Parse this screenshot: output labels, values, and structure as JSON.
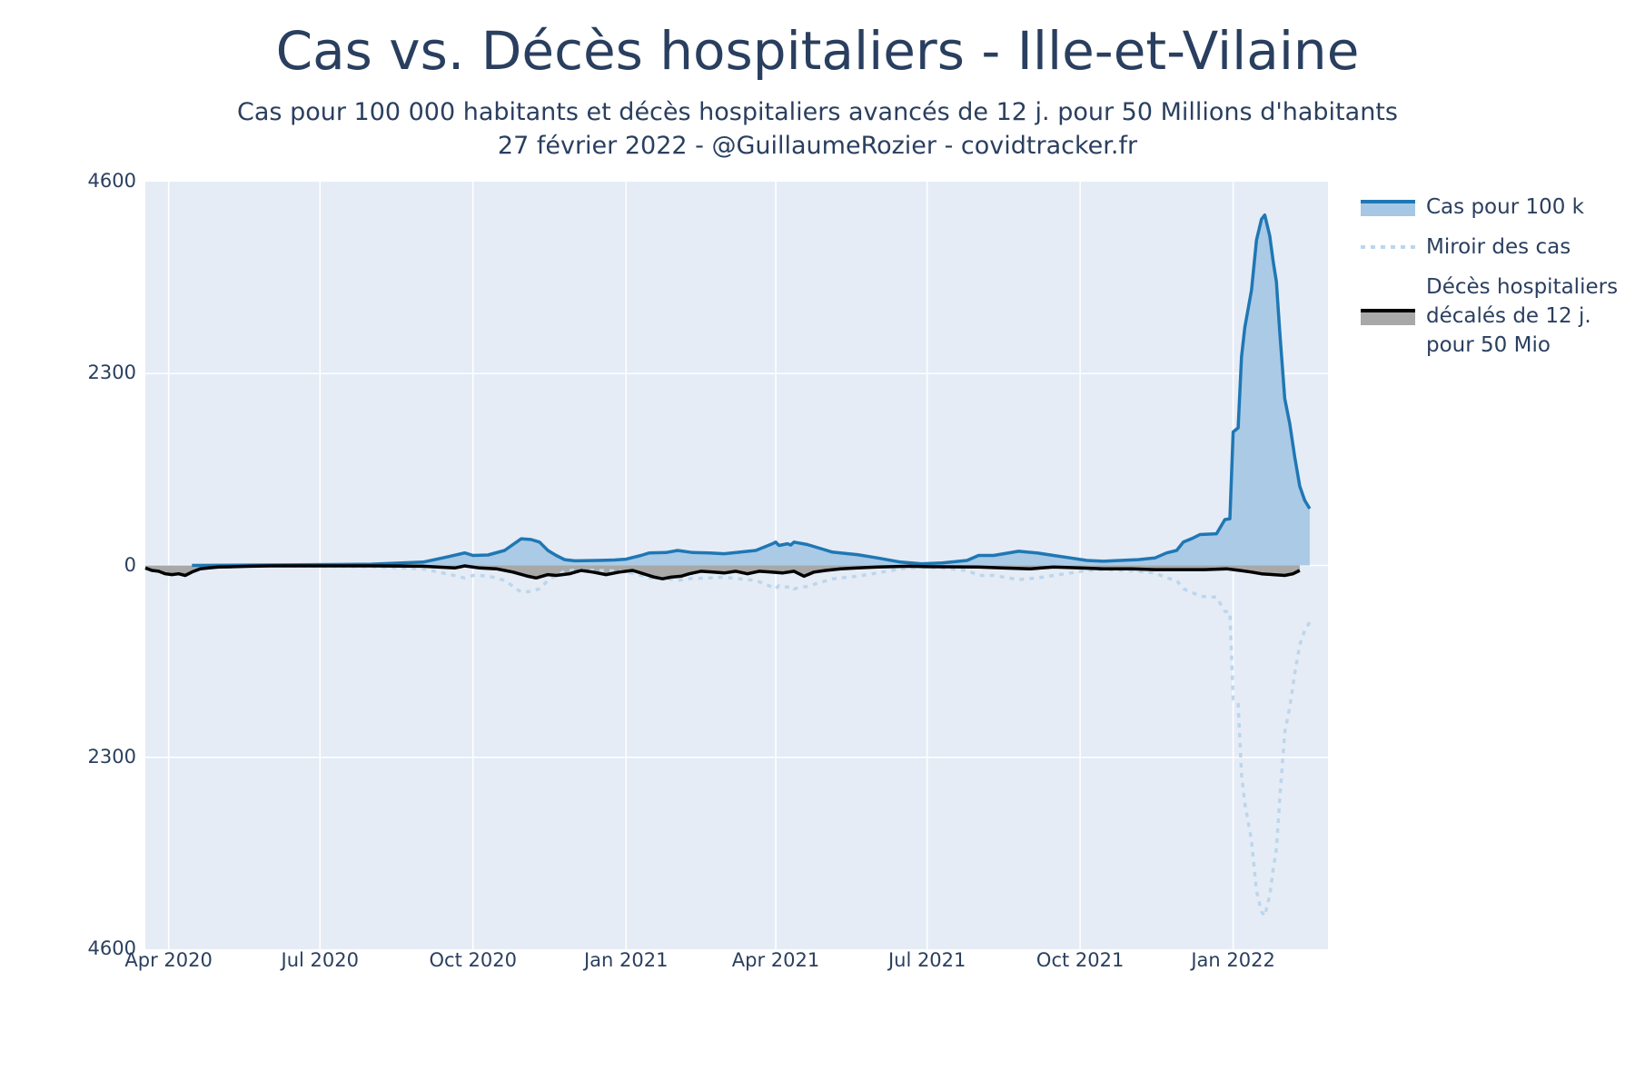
{
  "title": "Cas vs. Décès hospitaliers - Ille-et-Vilaine",
  "subtitle_line1": "Cas pour 100 000 habitants et décès hospitaliers avancés de 12 j. pour 50 Millions d'habitants",
  "subtitle_line2": "27 février 2022 - @GuillaumeRozier - covidtracker.fr",
  "colors": {
    "plot_bg": "#e5ecf6",
    "grid": "#ffffff",
    "cases_line": "#1f77b4",
    "cases_fill": "#a6c8e5",
    "mirror_line": "#bcd6ec",
    "deaths_line": "#000000",
    "deaths_fill": "#a8a8a8",
    "text": "#2a3f5f"
  },
  "legend": {
    "cases": "Cas pour 100 k",
    "mirror": "Miroir des cas",
    "deaths_l1": "Décès hospitaliers",
    "deaths_l2": "décalés de 12 j.",
    "deaths_l3": "pour 50 Mio"
  },
  "chart_data": {
    "type": "area",
    "x_range": [
      "2020-03-18",
      "2022-02-27"
    ],
    "y_range": [
      -4600,
      4600
    ],
    "y_ticks": [
      {
        "value": 4600,
        "label": "4600"
      },
      {
        "value": 2300,
        "label": "2300"
      },
      {
        "value": 0,
        "label": "0"
      },
      {
        "value": -2300,
        "label": "2300"
      },
      {
        "value": -4600,
        "label": "4600"
      }
    ],
    "x_ticks": [
      {
        "date": "2020-04-01",
        "label": "Apr 2020"
      },
      {
        "date": "2020-07-01",
        "label": "Jul 2020"
      },
      {
        "date": "2020-10-01",
        "label": "Oct 2020"
      },
      {
        "date": "2021-01-01",
        "label": "Jan 2021"
      },
      {
        "date": "2021-04-01",
        "label": "Apr 2021"
      },
      {
        "date": "2021-07-01",
        "label": "Jul 2021"
      },
      {
        "date": "2021-10-01",
        "label": "Oct 2021"
      },
      {
        "date": "2022-01-01",
        "label": "Jan 2022"
      }
    ],
    "grid": true,
    "legend_position": "right",
    "series": [
      {
        "name": "Cas pour 100 k",
        "style": "line-fill",
        "points": [
          [
            "2020-04-15",
            0
          ],
          [
            "2020-06-01",
            5
          ],
          [
            "2020-08-01",
            15
          ],
          [
            "2020-09-01",
            40
          ],
          [
            "2020-09-15",
            100
          ],
          [
            "2020-09-26",
            150
          ],
          [
            "2020-10-01",
            120
          ],
          [
            "2020-10-10",
            125
          ],
          [
            "2020-10-20",
            180
          ],
          [
            "2020-10-30",
            320
          ],
          [
            "2020-11-05",
            310
          ],
          [
            "2020-11-10",
            280
          ],
          [
            "2020-11-15",
            180
          ],
          [
            "2020-11-20",
            120
          ],
          [
            "2020-11-25",
            70
          ],
          [
            "2020-12-01",
            55
          ],
          [
            "2020-12-15",
            60
          ],
          [
            "2020-12-25",
            65
          ],
          [
            "2021-01-01",
            75
          ],
          [
            "2021-01-10",
            120
          ],
          [
            "2021-01-15",
            150
          ],
          [
            "2021-01-25",
            155
          ],
          [
            "2021-02-01",
            180
          ],
          [
            "2021-02-10",
            155
          ],
          [
            "2021-02-20",
            150
          ],
          [
            "2021-03-01",
            140
          ],
          [
            "2021-03-20",
            180
          ],
          [
            "2021-03-30",
            260
          ],
          [
            "2021-04-01",
            280
          ],
          [
            "2021-04-03",
            240
          ],
          [
            "2021-04-08",
            260
          ],
          [
            "2021-04-10",
            245
          ],
          [
            "2021-04-12",
            280
          ],
          [
            "2021-04-20",
            250
          ],
          [
            "2021-04-30",
            190
          ],
          [
            "2021-05-05",
            160
          ],
          [
            "2021-05-10",
            150
          ],
          [
            "2021-05-20",
            130
          ],
          [
            "2021-06-01",
            90
          ],
          [
            "2021-06-15",
            40
          ],
          [
            "2021-06-28",
            20
          ],
          [
            "2021-07-10",
            30
          ],
          [
            "2021-07-25",
            60
          ],
          [
            "2021-08-01",
            120
          ],
          [
            "2021-08-10",
            120
          ],
          [
            "2021-08-25",
            170
          ],
          [
            "2021-09-05",
            150
          ],
          [
            "2021-09-15",
            120
          ],
          [
            "2021-09-25",
            90
          ],
          [
            "2021-10-05",
            60
          ],
          [
            "2021-10-15",
            50
          ],
          [
            "2021-10-25",
            60
          ],
          [
            "2021-11-05",
            70
          ],
          [
            "2021-11-15",
            90
          ],
          [
            "2021-11-22",
            150
          ],
          [
            "2021-11-28",
            180
          ],
          [
            "2021-12-02",
            280
          ],
          [
            "2021-12-08",
            330
          ],
          [
            "2021-12-12",
            370
          ],
          [
            "2021-12-22",
            380
          ],
          [
            "2021-12-27",
            550
          ],
          [
            "2021-12-30",
            560
          ],
          [
            "2022-01-01",
            1600
          ],
          [
            "2022-01-04",
            1650
          ],
          [
            "2022-01-06",
            2500
          ],
          [
            "2022-01-08",
            2850
          ],
          [
            "2022-01-12",
            3300
          ],
          [
            "2022-01-15",
            3900
          ],
          [
            "2022-01-18",
            4150
          ],
          [
            "2022-01-20",
            4200
          ],
          [
            "2022-01-23",
            3950
          ],
          [
            "2022-01-25",
            3650
          ],
          [
            "2022-01-27",
            3400
          ],
          [
            "2022-01-29",
            2800
          ],
          [
            "2022-02-01",
            2000
          ],
          [
            "2022-02-04",
            1700
          ],
          [
            "2022-02-07",
            1300
          ],
          [
            "2022-02-10",
            950
          ],
          [
            "2022-02-13",
            780
          ],
          [
            "2022-02-16",
            680
          ]
        ]
      },
      {
        "name": "Miroir des cas",
        "style": "dotted",
        "mirror_of": "Cas pour 100 k"
      },
      {
        "name": "Décès hospitaliers décalés de 12 j. pour 50 Mio",
        "style": "line-fill",
        "points": [
          [
            "2020-03-18",
            -30
          ],
          [
            "2020-03-22",
            -60
          ],
          [
            "2020-03-26",
            -70
          ],
          [
            "2020-03-30",
            -100
          ],
          [
            "2020-04-03",
            -110
          ],
          [
            "2020-04-07",
            -100
          ],
          [
            "2020-04-11",
            -120
          ],
          [
            "2020-04-15",
            -80
          ],
          [
            "2020-04-20",
            -40
          ],
          [
            "2020-04-25",
            -30
          ],
          [
            "2020-05-01",
            -20
          ],
          [
            "2020-05-10",
            -15
          ],
          [
            "2020-05-20",
            -10
          ],
          [
            "2020-06-01",
            -5
          ],
          [
            "2020-08-01",
            -5
          ],
          [
            "2020-09-01",
            -10
          ],
          [
            "2020-09-20",
            -30
          ],
          [
            "2020-09-26",
            -5
          ],
          [
            "2020-10-05",
            -30
          ],
          [
            "2020-10-15",
            -40
          ],
          [
            "2020-10-25",
            -80
          ],
          [
            "2020-11-03",
            -130
          ],
          [
            "2020-11-08",
            -150
          ],
          [
            "2020-11-15",
            -110
          ],
          [
            "2020-11-20",
            -120
          ],
          [
            "2020-11-28",
            -100
          ],
          [
            "2020-12-05",
            -60
          ],
          [
            "2020-12-12",
            -80
          ],
          [
            "2020-12-20",
            -110
          ],
          [
            "2020-12-28",
            -80
          ],
          [
            "2021-01-05",
            -60
          ],
          [
            "2021-01-10",
            -90
          ],
          [
            "2021-01-18",
            -140
          ],
          [
            "2021-01-23",
            -160
          ],
          [
            "2021-01-28",
            -140
          ],
          [
            "2021-02-03",
            -130
          ],
          [
            "2021-02-08",
            -100
          ],
          [
            "2021-02-15",
            -70
          ],
          [
            "2021-02-22",
            -80
          ],
          [
            "2021-03-01",
            -90
          ],
          [
            "2021-03-08",
            -70
          ],
          [
            "2021-03-15",
            -100
          ],
          [
            "2021-03-22",
            -70
          ],
          [
            "2021-03-29",
            -80
          ],
          [
            "2021-04-05",
            -90
          ],
          [
            "2021-04-12",
            -70
          ],
          [
            "2021-04-18",
            -130
          ],
          [
            "2021-04-24",
            -80
          ],
          [
            "2021-05-01",
            -60
          ],
          [
            "2021-05-10",
            -40
          ],
          [
            "2021-05-20",
            -30
          ],
          [
            "2021-06-01",
            -20
          ],
          [
            "2021-06-20",
            -10
          ],
          [
            "2021-07-01",
            -15
          ],
          [
            "2021-08-01",
            -20
          ],
          [
            "2021-08-15",
            -30
          ],
          [
            "2021-09-01",
            -40
          ],
          [
            "2021-09-15",
            -20
          ],
          [
            "2021-10-01",
            -30
          ],
          [
            "2021-10-15",
            -40
          ],
          [
            "2021-11-01",
            -40
          ],
          [
            "2021-11-15",
            -50
          ],
          [
            "2021-12-01",
            -50
          ],
          [
            "2021-12-15",
            -50
          ],
          [
            "2021-12-28",
            -40
          ],
          [
            "2022-01-05",
            -60
          ],
          [
            "2022-01-12",
            -80
          ],
          [
            "2022-01-18",
            -100
          ],
          [
            "2022-01-25",
            -110
          ],
          [
            "2022-02-01",
            -120
          ],
          [
            "2022-02-06",
            -100
          ],
          [
            "2022-02-10",
            -60
          ]
        ]
      }
    ]
  }
}
